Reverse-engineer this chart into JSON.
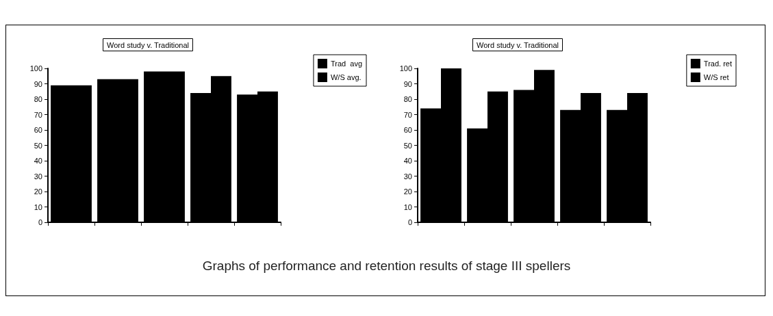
{
  "chart_data": [
    {
      "type": "bar",
      "title": "Word study v. Traditional",
      "categories": [
        null,
        null,
        null,
        null,
        null
      ],
      "series": [
        {
          "name": "Trad  avg",
          "color": "#000000",
          "values": [
            89,
            93,
            98,
            84,
            83
          ]
        },
        {
          "name": "W/S avg.",
          "color": "#000000",
          "values": [
            89,
            93,
            98,
            95,
            85
          ]
        }
      ],
      "ylim": [
        0,
        100
      ],
      "yticks": [
        0,
        10,
        20,
        30,
        40,
        50,
        60,
        70,
        80,
        90,
        100
      ],
      "grid": false,
      "legend": "top right"
    },
    {
      "type": "bar",
      "title": "Word study v. Traditional",
      "categories": [
        null,
        null,
        null,
        null,
        null
      ],
      "series": [
        {
          "name": "Trad. ret",
          "color": "#000000",
          "values": [
            74,
            61,
            86,
            73,
            73
          ]
        },
        {
          "name": "W/S ret",
          "color": "#000000",
          "values": [
            100,
            85,
            99,
            84,
            84
          ]
        }
      ],
      "ylim": [
        0,
        100
      ],
      "yticks": [
        0,
        10,
        20,
        30,
        40,
        50,
        60,
        70,
        80,
        90,
        100
      ],
      "grid": false,
      "legend": "top right",
      "annotations": [
        "Graphs of performance and retention results of stage III spellers"
      ]
    }
  ]
}
